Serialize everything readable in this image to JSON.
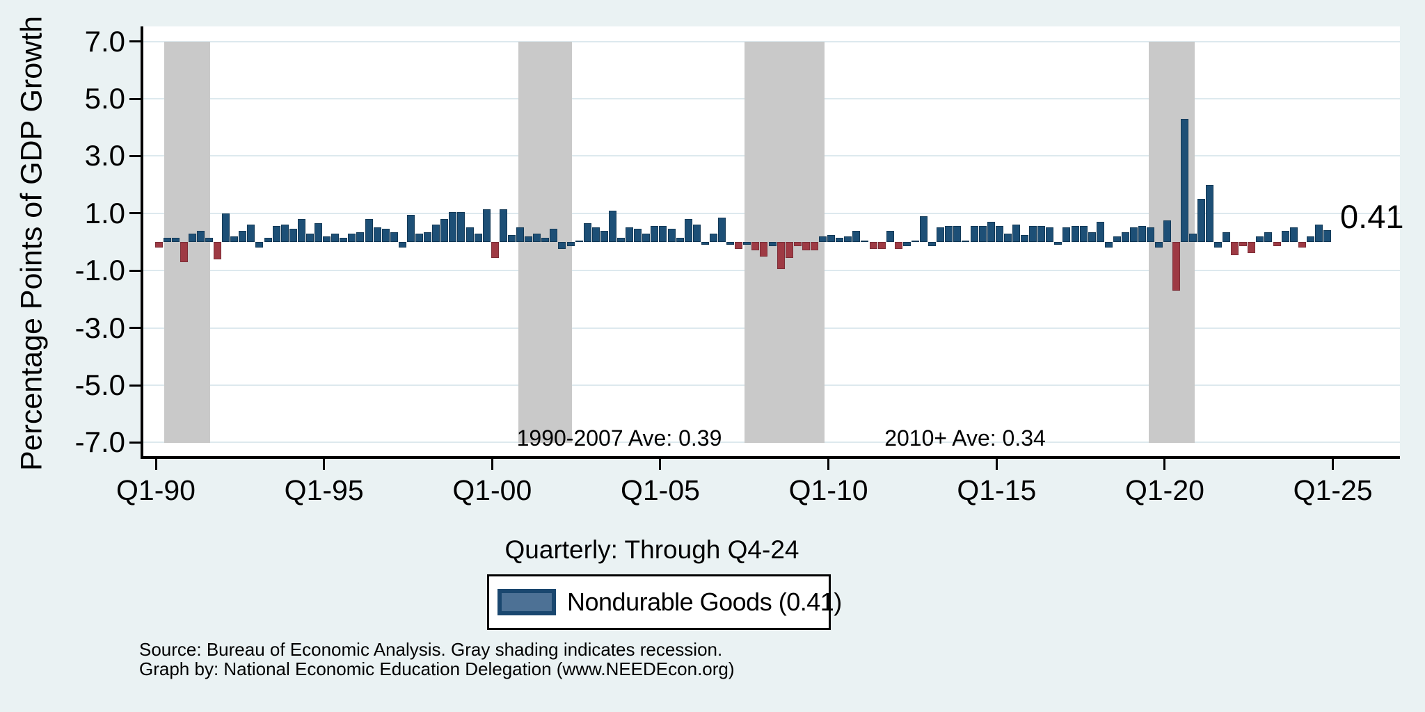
{
  "chart_data": {
    "type": "bar",
    "title": "",
    "ylabel": "Percentage Points of GDP Growth",
    "xlabel": "Quarterly: Through Q4-24",
    "frequency": "quarterly",
    "x_start": "Q1-1990",
    "x_end": "Q4-2024",
    "ylim": [
      -7.5,
      7.5
    ],
    "grid": true,
    "y_tick_values": [
      7,
      5,
      3,
      1,
      -1,
      -3,
      -5,
      -7
    ],
    "y_tick_labels": [
      "7.0",
      "5.0",
      "3.0",
      "1.0",
      "-1.0",
      "-3.0",
      "-5.0",
      "-7.0"
    ],
    "x_tick_labels": [
      "Q1-90",
      "Q1-95",
      "Q1-00",
      "Q1-05",
      "Q1-10",
      "Q1-15",
      "Q1-20",
      "Q1-25"
    ],
    "x_tick_indices": [
      0,
      20,
      40,
      60,
      80,
      100,
      120,
      140
    ],
    "series_name": "Nondurable Goods",
    "latest_value": 0.41,
    "values": [
      -0.2,
      0.15,
      0.15,
      -0.7,
      0.3,
      0.4,
      0.15,
      -0.6,
      1.0,
      0.2,
      0.4,
      0.6,
      -0.2,
      0.15,
      0.55,
      0.6,
      0.45,
      0.8,
      0.3,
      0.65,
      0.2,
      0.3,
      0.15,
      0.3,
      0.35,
      0.8,
      0.5,
      0.45,
      0.35,
      -0.2,
      0.95,
      0.3,
      0.35,
      0.6,
      0.8,
      1.05,
      1.05,
      0.5,
      0.3,
      1.15,
      -0.55,
      1.15,
      0.25,
      0.5,
      0.2,
      0.3,
      0.15,
      0.45,
      -0.25,
      -0.15,
      0.05,
      0.65,
      0.5,
      0.4,
      1.1,
      0.15,
      0.5,
      0.45,
      0.3,
      0.55,
      0.55,
      0.45,
      0.15,
      0.8,
      0.6,
      -0.1,
      0.3,
      0.85,
      -0.1,
      -0.25,
      -0.1,
      -0.3,
      -0.5,
      -0.15,
      -0.95,
      -0.55,
      -0.15,
      -0.3,
      -0.3,
      0.2,
      0.25,
      0.15,
      0.2,
      0.4,
      0.05,
      -0.25,
      -0.25,
      0.4,
      -0.25,
      -0.15,
      0.05,
      0.9,
      -0.15,
      0.5,
      0.55,
      0.55,
      0.05,
      0.55,
      0.55,
      0.7,
      0.55,
      0.3,
      0.6,
      0.25,
      0.55,
      0.55,
      0.5,
      -0.1,
      0.5,
      0.55,
      0.55,
      0.35,
      0.7,
      -0.2,
      0.2,
      0.35,
      0.5,
      0.55,
      0.5,
      -0.2,
      0.75,
      -1.7,
      4.3,
      0.3,
      1.5,
      2.0,
      -0.2,
      0.35,
      -0.45,
      -0.15,
      -0.4,
      0.2,
      0.35,
      -0.15,
      0.4,
      0.5,
      -0.2,
      0.2,
      0.6,
      0.41
    ],
    "red_bar_indices": [
      0,
      3,
      7,
      40,
      69,
      71,
      72,
      74,
      75,
      76,
      77,
      78,
      85,
      86,
      88,
      121,
      128,
      129,
      130,
      133,
      136
    ],
    "recession_bands_quarter_idx": [
      {
        "from_idx": 0.7,
        "to_idx": 6.1
      },
      {
        "from_idx": 42.8,
        "to_idx": 49.2
      },
      {
        "from_idx": 69.7,
        "to_idx": 79.2
      },
      {
        "from_idx": 117.8,
        "to_idx": 123.2
      }
    ],
    "annotations": [
      {
        "id": "ave_1990_2007",
        "text": "1990-2007 Ave: 0.39"
      },
      {
        "id": "ave_2010_plus",
        "text": "2010+ Ave: 0.34"
      }
    ],
    "end_label": "0.41",
    "legend": {
      "label": "Nondurable Goods (0.41)",
      "position": "bottom"
    },
    "colors": {
      "positive_bar": "#1d4f76",
      "negative_bar_red": "#9e3a44",
      "recession_band": "#c9c9c9",
      "background": "#eaf2f3",
      "plot_background": "#ffffff",
      "gridline": "#dde9ee"
    }
  },
  "source": {
    "line1": "Source: Bureau of Economic Analysis. Gray shading indicates recession.",
    "line2": "Graph by: National Economic Education Delegation (www.NEEDEcon.org)"
  }
}
